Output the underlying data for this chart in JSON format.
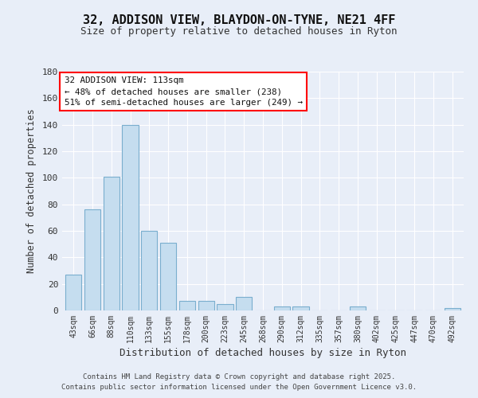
{
  "title_line1": "32, ADDISON VIEW, BLAYDON-ON-TYNE, NE21 4FF",
  "title_line2": "Size of property relative to detached houses in Ryton",
  "xlabel": "Distribution of detached houses by size in Ryton",
  "ylabel": "Number of detached properties",
  "bar_labels": [
    "43sqm",
    "66sqm",
    "88sqm",
    "110sqm",
    "133sqm",
    "155sqm",
    "178sqm",
    "200sqm",
    "223sqm",
    "245sqm",
    "268sqm",
    "290sqm",
    "312sqm",
    "335sqm",
    "357sqm",
    "380sqm",
    "402sqm",
    "425sqm",
    "447sqm",
    "470sqm",
    "492sqm"
  ],
  "bar_values": [
    27,
    76,
    101,
    140,
    60,
    51,
    7,
    7,
    5,
    10,
    0,
    3,
    3,
    0,
    0,
    3,
    0,
    0,
    0,
    0,
    2
  ],
  "bar_color": "#c5ddef",
  "bar_edge_color": "#7aaece",
  "ylim": [
    0,
    180
  ],
  "yticks": [
    0,
    20,
    40,
    60,
    80,
    100,
    120,
    140,
    160,
    180
  ],
  "annotation_title": "32 ADDISON VIEW: 113sqm",
  "annotation_line1": "← 48% of detached houses are smaller (238)",
  "annotation_line2": "51% of semi-detached houses are larger (249) →",
  "background_color": "#e8eef8",
  "grid_color": "#ffffff",
  "footer_line1": "Contains HM Land Registry data © Crown copyright and database right 2025.",
  "footer_line2": "Contains public sector information licensed under the Open Government Licence v3.0."
}
